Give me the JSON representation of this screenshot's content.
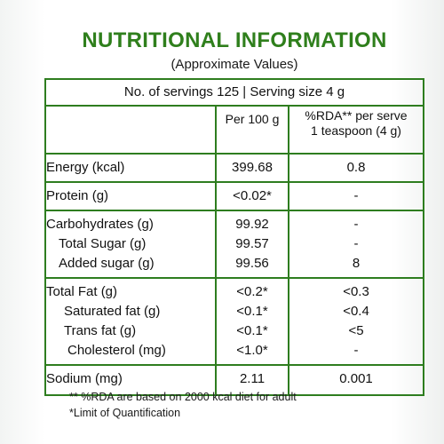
{
  "title": "NUTRITIONAL INFORMATION",
  "subtitle": "(Approximate Values)",
  "serving_info": "No. of servings 125 | Serving size 4 g",
  "columns": {
    "per100": "Per 100 g",
    "rda_line1": "%RDA** per serve",
    "rda_line2": "1 teaspoon (4 g)"
  },
  "rows": {
    "energy": {
      "label": "Energy (kcal)",
      "per100": "399.68",
      "rda": "0.8"
    },
    "protein": {
      "label": "Protein (g)",
      "per100": "<0.02*",
      "rda": "-"
    },
    "carbohydrates": {
      "label": "Carbohydrates (g)",
      "per100": "99.92",
      "rda": "-"
    },
    "total_sugar": {
      "label": "Total Sugar (g)",
      "per100": "99.57",
      "rda": "-"
    },
    "added_sugar": {
      "label": "Added sugar (g)",
      "per100": "99.56",
      "rda": "8"
    },
    "total_fat": {
      "label": "Total Fat (g)",
      "per100": "<0.2*",
      "rda": "<0.3"
    },
    "saturated_fat": {
      "label": "Saturated fat (g)",
      "per100": "<0.1*",
      "rda": "<0.4"
    },
    "trans_fat": {
      "label": "Trans fat (g)",
      "per100": "<0.1*",
      "rda": "<5"
    },
    "cholesterol": {
      "label": "Cholesterol (mg)",
      "per100": "<1.0*",
      "rda": "-"
    },
    "sodium": {
      "label": "Sodium (mg)",
      "per100": "2.11",
      "rda": "0.001"
    }
  },
  "footnotes": {
    "rda_note": "** %RDA are based on 2000 kcal diet for adult",
    "loq_note": "*Limit of Quantification"
  },
  "colors": {
    "accent": "#2e7d1f",
    "title": "#2f7f1c"
  }
}
